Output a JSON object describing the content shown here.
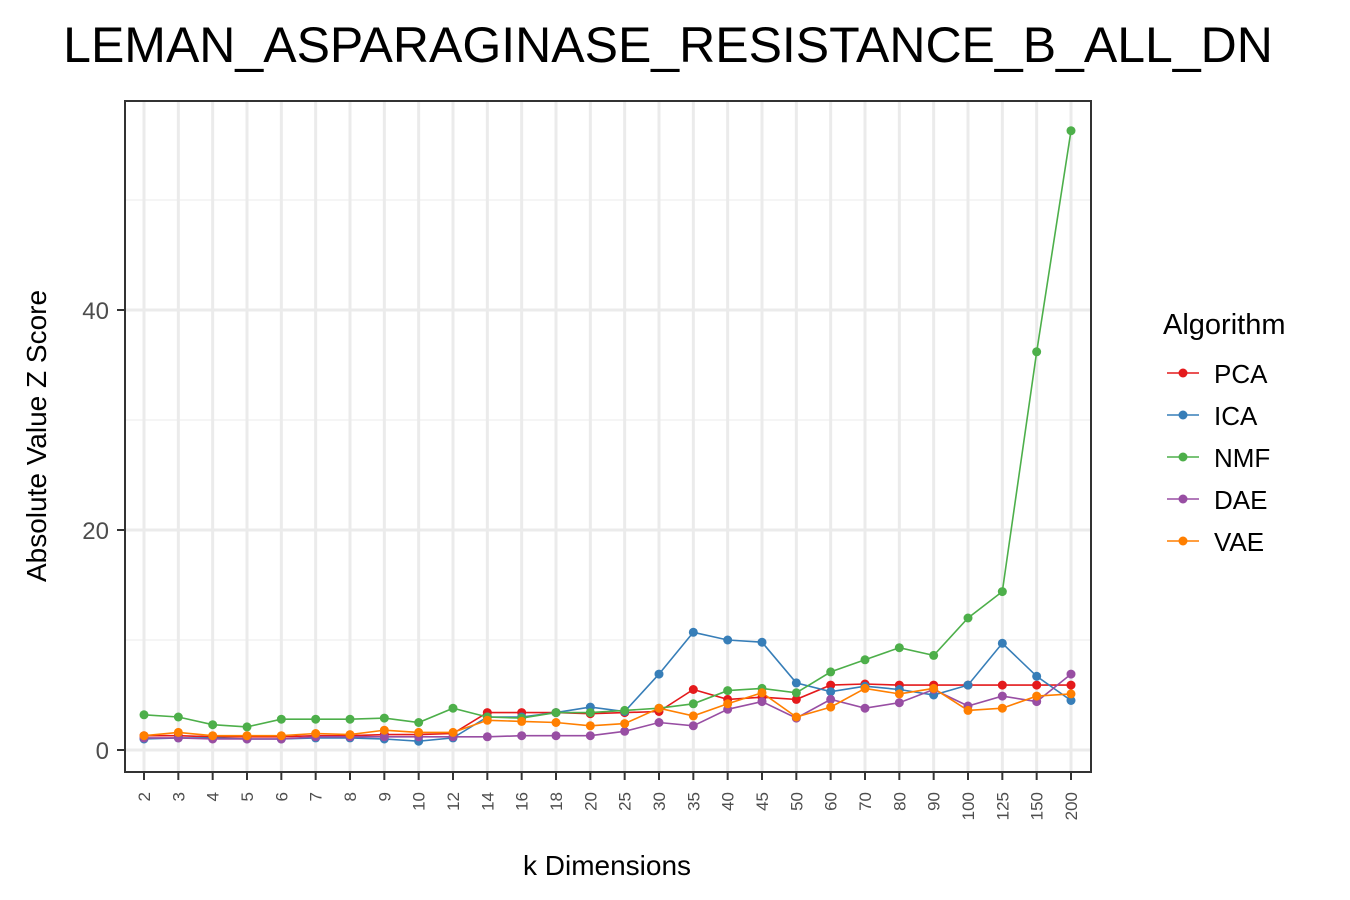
{
  "chart_data": {
    "type": "line",
    "title": "LEMAN_ASPARAGINASE_RESISTANCE_B_ALL_DN",
    "xlabel": "k Dimensions",
    "ylabel": "Absolute Value Z Score",
    "categories": [
      "2",
      "3",
      "4",
      "5",
      "6",
      "7",
      "8",
      "9",
      "10",
      "12",
      "14",
      "16",
      "18",
      "20",
      "25",
      "30",
      "35",
      "40",
      "45",
      "50",
      "60",
      "70",
      "80",
      "90",
      "100",
      "125",
      "150",
      "200"
    ],
    "yticks": [
      0,
      20,
      40
    ],
    "ylim": [
      -2,
      59
    ],
    "grid": true,
    "legend": {
      "title": "Algorithm",
      "placement": "right"
    },
    "series": [
      {
        "name": "PCA",
        "color": "#e41a1c",
        "values": [
          1.3,
          1.3,
          1.2,
          1.2,
          1.2,
          1.3,
          1.3,
          1.4,
          1.4,
          1.5,
          3.4,
          3.4,
          3.4,
          3.3,
          3.4,
          3.5,
          5.5,
          4.6,
          4.8,
          4.6,
          5.9,
          6.0,
          5.9,
          5.9,
          5.9,
          5.9,
          5.9,
          5.9
        ]
      },
      {
        "name": "ICA",
        "color": "#377eb8",
        "values": [
          1.0,
          1.1,
          1.1,
          1.0,
          1.0,
          1.1,
          1.1,
          1.0,
          0.8,
          1.1,
          3.0,
          3.0,
          3.4,
          3.9,
          3.5,
          6.9,
          10.7,
          10.0,
          9.8,
          6.1,
          5.3,
          5.8,
          5.5,
          5.0,
          5.9,
          9.7,
          6.7,
          4.5
        ]
      },
      {
        "name": "NMF",
        "color": "#4daf4a",
        "values": [
          3.2,
          3.0,
          2.3,
          2.1,
          2.8,
          2.8,
          2.8,
          2.9,
          2.5,
          3.8,
          3.0,
          2.9,
          3.4,
          3.4,
          3.6,
          3.8,
          4.2,
          5.4,
          5.6,
          5.2,
          7.1,
          8.2,
          9.3,
          8.6,
          12.0,
          14.4,
          36.2,
          56.3
        ]
      },
      {
        "name": "DAE",
        "color": "#984ea3",
        "values": [
          1.1,
          1.1,
          1.0,
          1.0,
          1.0,
          1.2,
          1.2,
          1.2,
          1.2,
          1.2,
          1.2,
          1.3,
          1.3,
          1.3,
          1.7,
          2.5,
          2.2,
          3.7,
          4.4,
          2.9,
          4.6,
          3.8,
          4.3,
          5.5,
          4.0,
          4.9,
          4.4,
          6.9
        ]
      },
      {
        "name": "VAE",
        "color": "#ff7f00",
        "values": [
          1.3,
          1.6,
          1.3,
          1.3,
          1.3,
          1.5,
          1.4,
          1.8,
          1.6,
          1.6,
          2.7,
          2.6,
          2.5,
          2.2,
          2.4,
          3.8,
          3.1,
          4.2,
          5.2,
          3.0,
          3.9,
          5.6,
          5.1,
          5.6,
          3.6,
          3.8,
          4.9,
          5.1
        ]
      }
    ]
  }
}
